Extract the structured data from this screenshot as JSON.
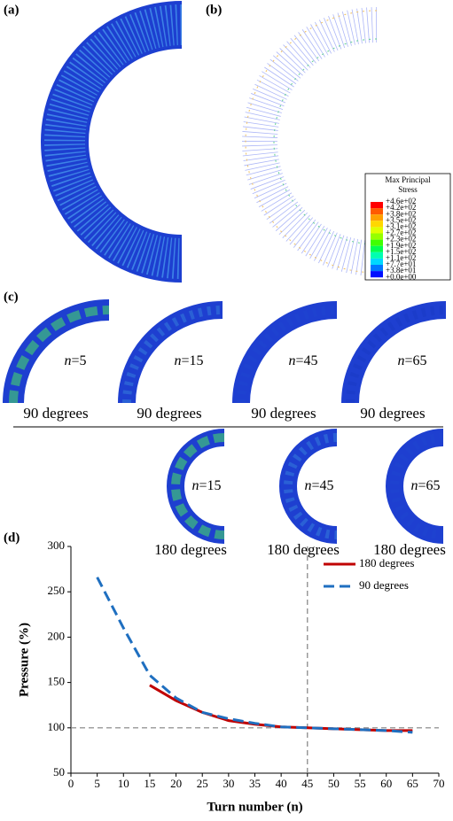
{
  "panels": {
    "a": {
      "label": "(a)"
    },
    "b": {
      "label": "(b)",
      "colorbar": {
        "title_lines": [
          "Max Principal",
          "Stress"
        ],
        "levels": [
          "+4.6e+02",
          "+4.2e+02",
          "+3.8e+02",
          "+3.5e+02",
          "+3.1e+02",
          "+2.7e+02",
          "+2.3e+02",
          "+1.9e+02",
          "+1.5e+02",
          "+1.1e+02",
          "+7.7e+01",
          "+3.8e+01",
          "+0.0e+00"
        ],
        "colors": [
          "#ff0000",
          "#ff5a00",
          "#ffa000",
          "#ffd800",
          "#e0ff00",
          "#96ff00",
          "#40ff00",
          "#00ff50",
          "#00ffb0",
          "#00d8ff",
          "#0078ff",
          "#0010ff"
        ]
      }
    },
    "c": {
      "label": "(c)",
      "row1": [
        {
          "var": "n",
          "eq": "=5",
          "caption": "90 degrees"
        },
        {
          "var": "n",
          "eq": "=15",
          "caption": "90 degrees"
        },
        {
          "var": "n",
          "eq": "=45",
          "caption": "90 degrees"
        },
        {
          "var": "n",
          "eq": "=65",
          "caption": "90 degrees"
        }
      ],
      "row2": [
        {
          "var": "n",
          "eq": "=15",
          "caption": "180 degrees"
        },
        {
          "var": "n",
          "eq": "=45",
          "caption": "180 degrees"
        },
        {
          "var": "n",
          "eq": "=65",
          "caption": "180 degrees"
        }
      ]
    }
  },
  "chart_data": {
    "type": "line",
    "panel_label": "(d)",
    "x_label": "Turn number (n)",
    "y_label": "Pressure (%)",
    "xlim": [
      0,
      70
    ],
    "xticks": [
      0,
      5,
      10,
      15,
      20,
      25,
      30,
      35,
      40,
      45,
      50,
      55,
      60,
      65,
      70
    ],
    "ylim": [
      50,
      300
    ],
    "yticks": [
      50,
      100,
      150,
      200,
      250,
      300
    ],
    "legend": "upper right",
    "reference_lines": [
      {
        "axis": "y",
        "value": 100
      },
      {
        "axis": "x",
        "value": 45
      }
    ],
    "series": [
      {
        "name": "180 degrees",
        "color": "#c00000",
        "dash": "solid",
        "x": [
          15,
          20,
          25,
          30,
          35,
          40,
          45,
          50,
          55,
          60,
          65
        ],
        "values": [
          147,
          130,
          117,
          108,
          104,
          101,
          100,
          99,
          98,
          97,
          97
        ]
      },
      {
        "name": "90 degrees",
        "color": "#1f6fc0",
        "dash": "dashed",
        "x": [
          5,
          10,
          15,
          20,
          25,
          30,
          35,
          40,
          45,
          50,
          55,
          60,
          65
        ],
        "values": [
          266,
          210,
          158,
          133,
          117,
          110,
          105,
          101,
          100,
          99,
          98,
          97,
          95
        ]
      }
    ]
  }
}
